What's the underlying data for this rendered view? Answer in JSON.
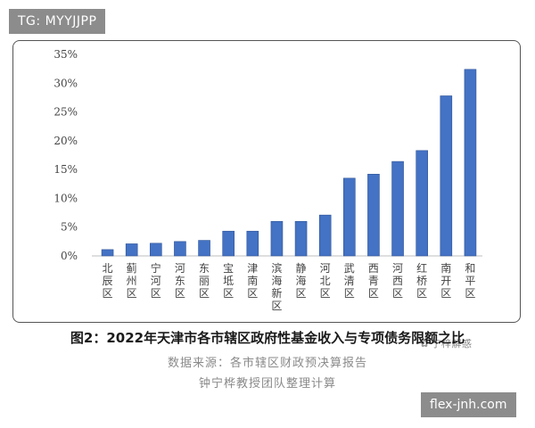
{
  "watermark_top": "TG: MYYJJPP",
  "watermark_bottom": "flex-jnh.com",
  "watermark_logo": "宁梓解惑",
  "figure_title": "图2：2022年天津市各市辖区政府性基金收入与专项债务限额之比",
  "source_line1": "数据来源：各市辖区财政预决算报告",
  "source_line2": "钟宁桦教授团队整理计算",
  "colors": {
    "bar": "#4472c4",
    "bar_edge": "#2f5597",
    "axis": "#bfbfbf"
  },
  "chart_data": {
    "type": "bar",
    "categories": [
      "北辰区",
      "蓟州区",
      "宁河区",
      "河东区",
      "东丽区",
      "宝坻区",
      "津南区",
      "滨海新区",
      "静海区",
      "河北区",
      "武清区",
      "西青区",
      "河西区",
      "红桥区",
      "南开区",
      "和平区"
    ],
    "values": [
      1.1,
      2.1,
      2.2,
      2.5,
      2.7,
      4.3,
      4.3,
      6.0,
      6.0,
      7.1,
      13.5,
      14.2,
      16.4,
      18.3,
      27.8,
      32.4
    ],
    "y_ticks": [
      "0%",
      "5%",
      "10%",
      "15%",
      "20%",
      "25%",
      "30%",
      "35%"
    ],
    "ylim": [
      0,
      35
    ],
    "unit": "%",
    "title": "",
    "xlabel": "",
    "ylabel": "",
    "grid": false,
    "legend": "none"
  }
}
